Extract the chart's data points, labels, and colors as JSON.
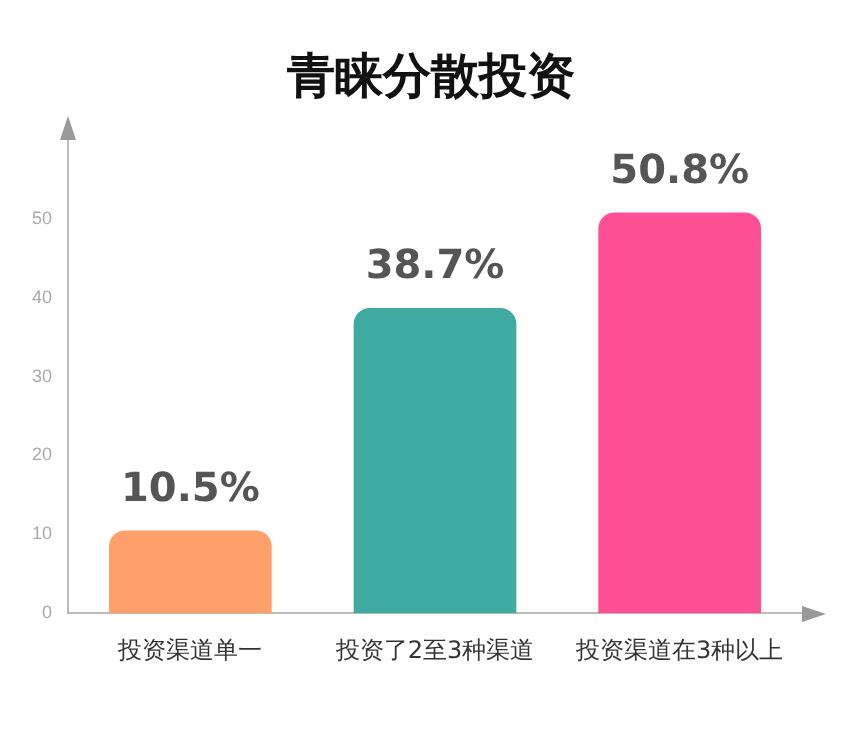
{
  "chart_data": {
    "type": "bar",
    "title": "青睐分散投资",
    "categories": [
      "投资渠道单一",
      "投资了2至3种渠道",
      "投资渠道在3种以上"
    ],
    "values": [
      10.5,
      38.7,
      50.8
    ],
    "colors": [
      "#ffa06a",
      "#3eaaa2",
      "#ff4f94"
    ],
    "value_labels": [
      "10.5%",
      "38.7%",
      "50.8%"
    ],
    "ylim": [
      0,
      60
    ],
    "yticks": [
      0,
      10,
      20,
      30,
      40,
      50
    ],
    "grid": false,
    "legend": false
  }
}
